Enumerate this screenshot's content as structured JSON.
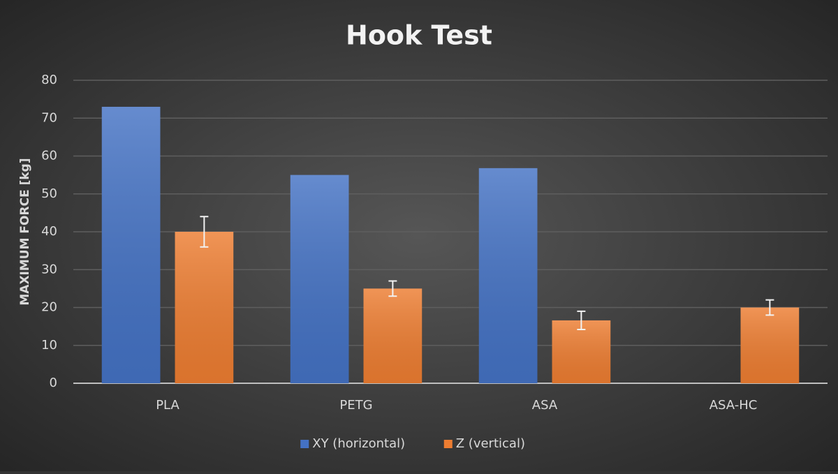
{
  "chart_data": {
    "type": "bar",
    "title": "Hook Test",
    "y_label": "MAXIMUM FORCE [kg]",
    "categories": [
      "PLA",
      "PETG",
      "ASA",
      "ASA-HC"
    ],
    "series": [
      {
        "name": "XY (horizontal)",
        "color": "#4472c4",
        "values": [
          73,
          55,
          56.8,
          null
        ]
      },
      {
        "name": "Z (vertical)",
        "color": "#ed7d31",
        "values": [
          40,
          25,
          16.6,
          20
        ],
        "errors": [
          4,
          2,
          2.4,
          2
        ]
      }
    ],
    "ylim": [
      0,
      80
    ],
    "yticks": [
      0,
      10,
      20,
      30,
      40,
      50,
      60,
      70,
      80
    ],
    "grid": true,
    "legend": "bottom"
  }
}
